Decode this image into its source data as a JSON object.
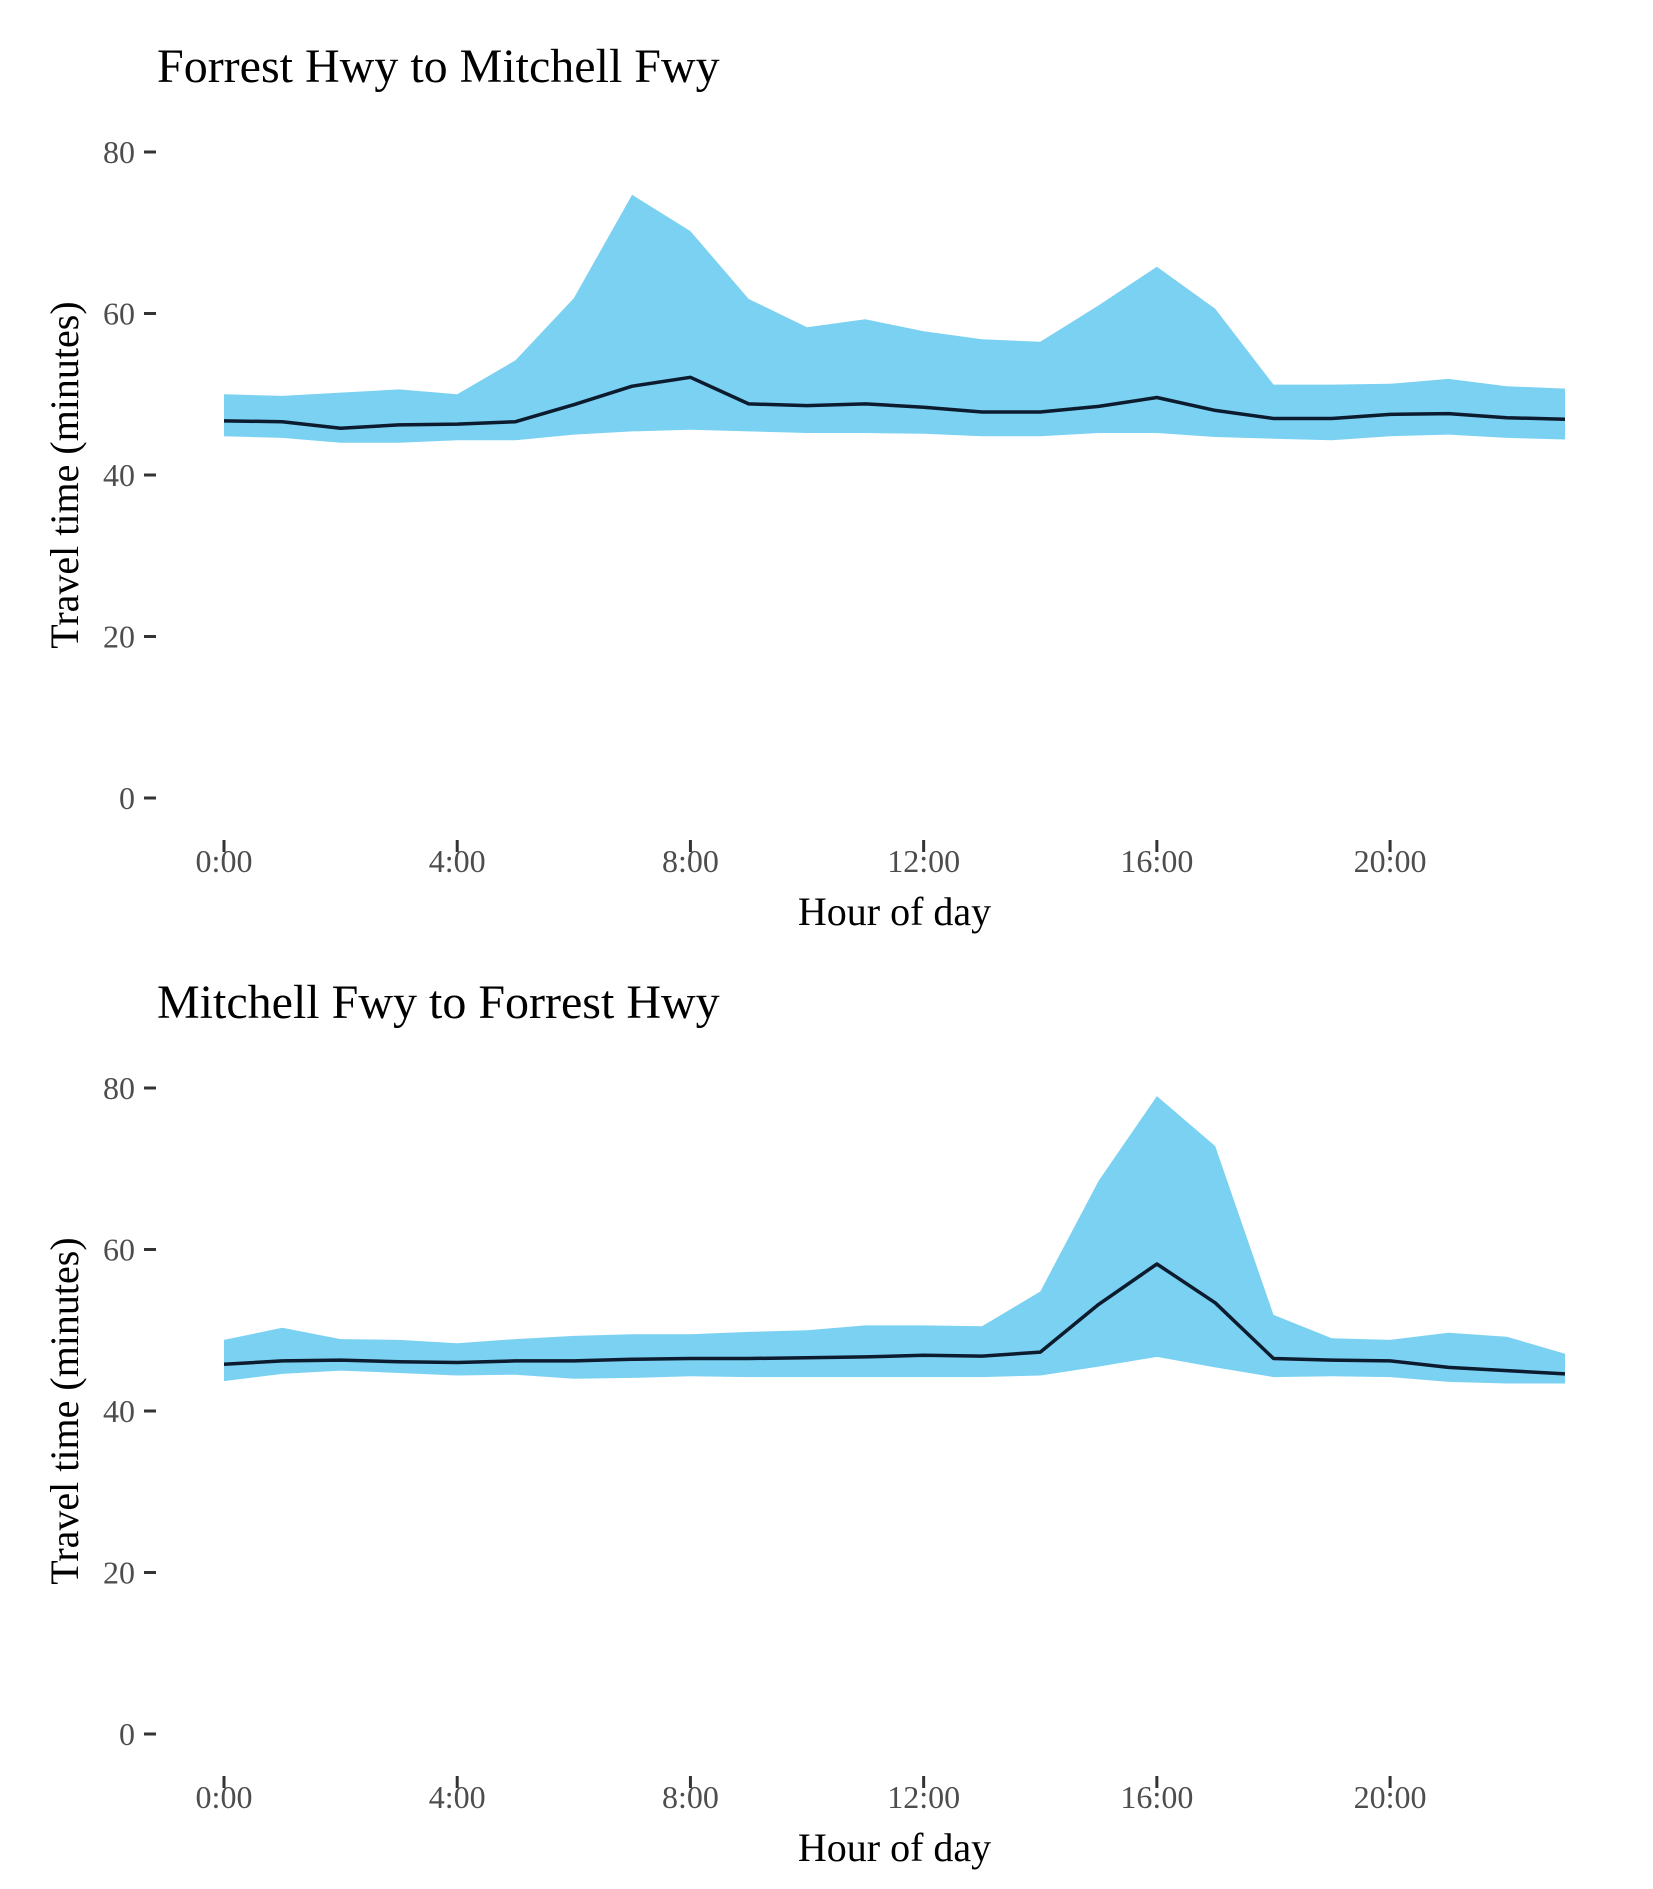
{
  "colors": {
    "ribbon": "#7ad1f2",
    "line": "#0d1b2e",
    "tick_label": "#4d4d4d",
    "tick_mark": "#333333",
    "background": "#ffffff"
  },
  "chart_data": [
    {
      "type": "area",
      "title": "Forrest Hwy to Mitchell Fwy",
      "xlabel": "Hour of day",
      "ylabel": "Travel time (minutes)",
      "xlim": [
        0,
        23
      ],
      "ylim": [
        0,
        80
      ],
      "grid": false,
      "x": [
        0,
        1,
        2,
        3,
        4,
        5,
        6,
        7,
        8,
        9,
        10,
        11,
        12,
        13,
        14,
        15,
        16,
        17,
        18,
        19,
        20,
        21,
        22,
        23
      ],
      "x_ticks": [
        0,
        4,
        8,
        12,
        16,
        20
      ],
      "x_tick_labels": [
        "0:00",
        "4:00",
        "8:00",
        "12:00",
        "16:00",
        "20:00"
      ],
      "y_ticks": [
        0,
        20,
        40,
        60,
        80
      ],
      "y_tick_labels": [
        "0",
        "20",
        "40",
        "60",
        "80"
      ],
      "series": [
        {
          "kind": "ribbon",
          "lower": [
            44.8,
            44.6,
            44.0,
            44.0,
            44.3,
            44.3,
            45.0,
            45.4,
            45.6,
            45.4,
            45.2,
            45.2,
            45.1,
            44.8,
            44.8,
            45.2,
            45.2,
            44.7,
            44.5,
            44.3,
            44.8,
            45.0,
            44.6,
            44.4
          ],
          "upper": [
            50.0,
            49.8,
            50.2,
            50.6,
            50.0,
            54.2,
            61.9,
            74.7,
            70.2,
            61.8,
            58.3,
            59.3,
            57.8,
            56.8,
            56.5,
            61.0,
            65.8,
            60.6,
            51.2,
            51.2,
            51.3,
            51.9,
            51.0,
            50.7
          ]
        },
        {
          "kind": "line",
          "values": [
            46.7,
            46.6,
            45.8,
            46.2,
            46.3,
            46.6,
            48.7,
            51.0,
            52.1,
            48.8,
            48.6,
            48.8,
            48.4,
            47.8,
            47.8,
            48.5,
            49.6,
            48.0,
            47.0,
            47.0,
            47.5,
            47.6,
            47.1,
            46.9
          ]
        }
      ]
    },
    {
      "type": "area",
      "title": "Mitchell Fwy to Forrest Hwy",
      "xlabel": "Hour of day",
      "ylabel": "Travel time (minutes)",
      "xlim": [
        0,
        23
      ],
      "ylim": [
        0,
        80
      ],
      "grid": false,
      "x": [
        0,
        1,
        2,
        3,
        4,
        5,
        6,
        7,
        8,
        9,
        10,
        11,
        12,
        13,
        14,
        15,
        16,
        17,
        18,
        19,
        20,
        21,
        22,
        23
      ],
      "x_ticks": [
        0,
        4,
        8,
        12,
        16,
        20
      ],
      "x_tick_labels": [
        "0:00",
        "4:00",
        "8:00",
        "12:00",
        "16:00",
        "20:00"
      ],
      "y_ticks": [
        0,
        20,
        40,
        60,
        80
      ],
      "y_tick_labels": [
        "0",
        "20",
        "40",
        "60",
        "80"
      ],
      "series": [
        {
          "kind": "ribbon",
          "lower": [
            43.7,
            44.6,
            45.0,
            44.7,
            44.4,
            44.5,
            44.0,
            44.1,
            44.3,
            44.2,
            44.2,
            44.2,
            44.2,
            44.2,
            44.4,
            45.5,
            46.7,
            45.4,
            44.2,
            44.3,
            44.2,
            43.6,
            43.4,
            43.4
          ],
          "upper": [
            48.8,
            50.3,
            48.9,
            48.8,
            48.4,
            48.9,
            49.3,
            49.5,
            49.5,
            49.8,
            50.0,
            50.6,
            50.6,
            50.5,
            54.8,
            68.5,
            79.0,
            72.8,
            51.9,
            49.0,
            48.8,
            49.7,
            49.2,
            47.1
          ]
        },
        {
          "kind": "line",
          "values": [
            45.8,
            46.2,
            46.3,
            46.1,
            46.0,
            46.2,
            46.2,
            46.4,
            46.5,
            46.5,
            46.6,
            46.7,
            46.9,
            46.8,
            47.3,
            53.2,
            58.2,
            53.4,
            46.5,
            46.3,
            46.2,
            45.4,
            45.0,
            44.6
          ]
        }
      ]
    }
  ]
}
